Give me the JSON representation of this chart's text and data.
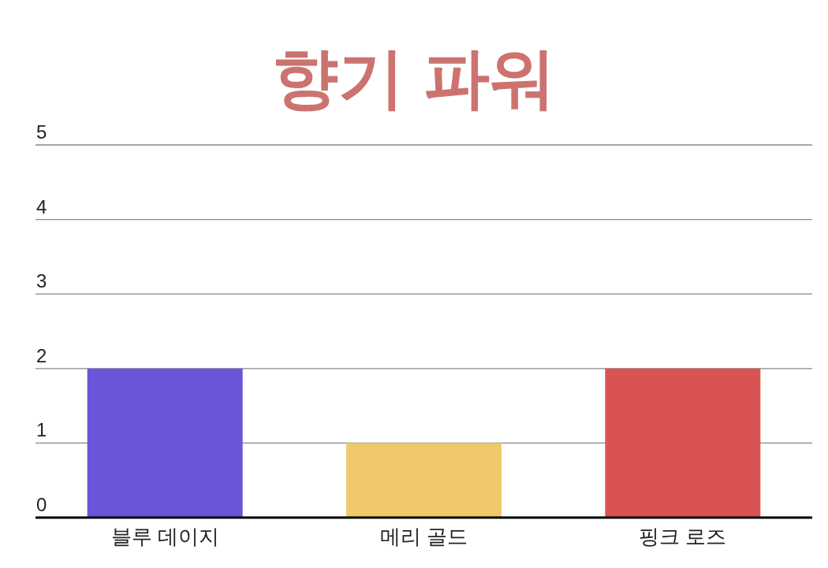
{
  "chart_data": {
    "type": "bar",
    "title": "향기 파워",
    "categories": [
      "블루 데이지",
      "메리 골드",
      "핑크 로즈"
    ],
    "values": [
      2,
      1,
      2
    ],
    "colors": [
      "#6a55d9",
      "#efc96b",
      "#d95353"
    ],
    "ylim": [
      0,
      5
    ],
    "yticks": [
      0,
      1,
      2,
      3,
      4,
      5
    ],
    "grid": "y"
  }
}
